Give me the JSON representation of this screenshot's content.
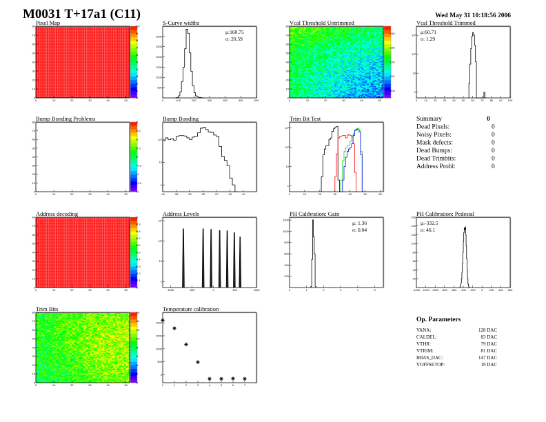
{
  "header": {
    "title": "M0031 T+17a1 (C11)",
    "date": "Wed May 31 10:18:56 2006"
  },
  "summary": {
    "title": "Summary",
    "total": "0",
    "rows": [
      {
        "label": "Dead Pixels:",
        "value": "0"
      },
      {
        "label": "Noisy Pixels:",
        "value": "0"
      },
      {
        "label": "Mask defects:",
        "value": "0"
      },
      {
        "label": "Dead Bumps:",
        "value": "0"
      },
      {
        "label": "Dead Trimbits:",
        "value": "0"
      },
      {
        "label": "Address Probl:",
        "value": "0"
      }
    ]
  },
  "op_parameters": {
    "title": "Op. Parameters",
    "rows": [
      {
        "label": "VANA:",
        "value": "128 DAC"
      },
      {
        "label": "CALDEL:",
        "value": "83 DAC"
      },
      {
        "label": "VTHR:",
        "value": "79 DAC"
      },
      {
        "label": "VTRIM:",
        "value": "81 DAC"
      },
      {
        "label": "IBIAS_DAC:",
        "value": "147 DAC"
      },
      {
        "label": "VOFFSETOP:",
        "value": "19 DAC"
      }
    ]
  },
  "colors": {
    "histogram_line": "#000000",
    "frame": "#000000"
  },
  "chart_data": [
    {
      "id": "pixel-map",
      "type": "heatmap",
      "title": "Pixel Map",
      "xlim": [
        0,
        52
      ],
      "ylim": [
        0,
        80
      ],
      "nx": 52,
      "ny": 80,
      "xticks": [
        0,
        10,
        20,
        30,
        40,
        50
      ],
      "yticks": [
        0,
        10,
        20,
        30,
        40,
        50,
        60,
        70,
        80
      ],
      "zlim": [
        0,
        10
      ],
      "zticks": [
        0,
        1,
        2,
        3,
        4,
        5,
        6,
        7,
        8,
        9,
        10
      ],
      "uniform_value": 10
    },
    {
      "id": "s-curve-widths",
      "type": "histogram",
      "title": "S-Curve widths",
      "xlim": [
        0,
        600
      ],
      "ylim": [
        0,
        3500
      ],
      "log_y": false,
      "xticks": [
        0,
        100,
        200,
        300,
        400,
        500,
        600
      ],
      "yticks": [
        500,
        1000,
        1500,
        2000,
        2500,
        3000
      ],
      "stats": {
        "mean": "μ:160.75",
        "sigma": "σ: 20.59"
      },
      "stats_position": "top-right",
      "series": [
        {
          "color": "#000000",
          "x0": 80,
          "width": 10,
          "values": [
            0,
            20,
            100,
            300,
            800,
            1500,
            2400,
            3350,
            3150,
            2200,
            1300,
            600,
            250,
            100,
            50,
            30,
            15,
            5,
            0
          ]
        }
      ]
    },
    {
      "id": "vcal-threshold-untrimmed",
      "type": "heatmap",
      "title": "Vcal Threshold Untrimmed",
      "xlim": [
        0,
        52
      ],
      "ylim": [
        0,
        80
      ],
      "nx": 52,
      "ny": 80,
      "xticks": [
        0,
        10,
        20,
        30,
        40,
        50
      ],
      "yticks": [
        0,
        10,
        20,
        30,
        40,
        50,
        60,
        70,
        80
      ],
      "zlim": [
        95,
        145
      ],
      "zticks": [
        100,
        110,
        120,
        130,
        140
      ],
      "coarse_grid_top_to_bottom": [
        [
          128,
          126,
          122,
          120
        ],
        [
          122,
          119,
          116,
          114
        ],
        [
          120,
          116,
          112,
          110
        ],
        [
          119,
          114,
          109,
          107
        ]
      ]
    },
    {
      "id": "vcal-threshold-trimmed",
      "type": "histogram",
      "title": "Vcal Threshold Trimmed",
      "xlim": [
        0,
        100
      ],
      "ylim": [
        0.5,
        3000
      ],
      "log_y": true,
      "xticks": [
        0,
        10,
        20,
        30,
        40,
        50,
        60,
        70,
        80,
        90,
        100
      ],
      "yticks": [
        1,
        10,
        100,
        1000
      ],
      "stats": {
        "mean": "μ:60.71",
        "sigma": "σ: 1.29"
      },
      "stats_position": "top-left",
      "series": [
        {
          "color": "#000000",
          "x0": 56,
          "width": 1,
          "values": [
            3,
            30,
            200,
            900,
            1400,
            1000,
            300,
            40,
            0,
            0,
            0,
            0,
            0,
            0,
            0,
            0,
            1,
            0
          ]
        }
      ]
    },
    {
      "id": "bump-bonding-problems",
      "type": "heatmap",
      "title": "Bump Bonding Problems",
      "xlim": [
        0,
        52
      ],
      "ylim": [
        0,
        80
      ],
      "nx": 52,
      "ny": 80,
      "xticks": [
        0,
        10,
        20,
        30,
        40,
        50
      ],
      "yticks": [
        0,
        10,
        20,
        30,
        40,
        50,
        60,
        70,
        80
      ],
      "zlim": [
        -2,
        2
      ],
      "zticks": [
        -2,
        -1.5,
        -1,
        -0.5,
        0,
        0.5,
        1,
        1.5,
        2
      ],
      "empty": true
    },
    {
      "id": "bump-bonding",
      "type": "histogram",
      "title": "Bump Bonding",
      "xlim": [
        -40,
        -5
      ],
      "ylim": [
        0.5,
        600
      ],
      "log_y": true,
      "xticks": [
        -40,
        -35,
        -30,
        -25,
        -20,
        -15,
        -10
      ],
      "yticks": [
        1,
        10,
        100
      ],
      "series": [
        {
          "color": "#000000",
          "x0": -40,
          "width": 1,
          "values": [
            90,
            120,
            100,
            110,
            95,
            140,
            150,
            150,
            145,
            120,
            100,
            130,
            140,
            200,
            320,
            350,
            280,
            220,
            210,
            160,
            140,
            50,
            18,
            12,
            7,
            2,
            1,
            0
          ]
        }
      ]
    },
    {
      "id": "trim-bit-test",
      "type": "histogram",
      "title": "Trim Bit Test",
      "xlim": [
        0,
        62
      ],
      "ylim": [
        0.5,
        2000
      ],
      "log_y": true,
      "xticks": [
        0,
        10,
        20,
        30,
        40,
        50,
        60
      ],
      "yticks": [
        1,
        10,
        100,
        1000
      ],
      "series": [
        {
          "color": "#000000",
          "x0": 21,
          "width": 1,
          "values": [
            3,
            40,
            80,
            120,
            120,
            250,
            300,
            650,
            900,
            1100,
            1200,
            2,
            0
          ]
        },
        {
          "color": "#ff0000",
          "x0": 30,
          "width": 1,
          "values": [
            3,
            45,
            300,
            350,
            380,
            400,
            400,
            300,
            420,
            450,
            400,
            350,
            150,
            5,
            0
          ]
        },
        {
          "color": "#00dd00",
          "x0": 34,
          "width": 1,
          "values": [
            2,
            20,
            60,
            90,
            120,
            120,
            200,
            350,
            500,
            800,
            900,
            950,
            700,
            60,
            0
          ]
        },
        {
          "color": "#0000ff",
          "x0": 35,
          "width": 1,
          "values": [
            2,
            10,
            30,
            60,
            80,
            100,
            150,
            400,
            700,
            850,
            800,
            600,
            40,
            0
          ]
        }
      ]
    },
    {
      "id": "address-decoding",
      "type": "heatmap",
      "title": "Address decoding",
      "xlim": [
        0,
        52
      ],
      "ylim": [
        0,
        80
      ],
      "nx": 52,
      "ny": 80,
      "xticks": [
        0,
        10,
        20,
        30,
        40,
        50
      ],
      "yticks": [
        0,
        10,
        20,
        30,
        40,
        50,
        60,
        70,
        80
      ],
      "zlim": [
        0,
        1
      ],
      "zticks": [
        0,
        0.1,
        0.2,
        0.3,
        0.4,
        0.5,
        0.6,
        0.7,
        0.8,
        0.9,
        1
      ],
      "uniform_value": 1
    },
    {
      "id": "address-levels",
      "type": "histogram",
      "title": "Address Levels",
      "xlim": [
        -1180,
        1000
      ],
      "ylim": [
        0.5,
        1500
      ],
      "log_y": true,
      "xticks": [
        -1000,
        -500,
        0,
        500,
        1000
      ],
      "yticks": [
        1,
        10,
        100,
        1000
      ],
      "peaks": [
        {
          "x": -700,
          "height": 400
        },
        {
          "x": -240,
          "height": 400
        },
        {
          "x": -55,
          "height": 380
        },
        {
          "x": 145,
          "height": 330
        },
        {
          "x": 320,
          "height": 320
        },
        {
          "x": 485,
          "height": 260
        },
        {
          "x": 620,
          "height": 160
        }
      ]
    },
    {
      "id": "ph-calibration-gain",
      "type": "histogram",
      "title": "PH Calibration: Gain",
      "xlim": [
        0,
        5.5
      ],
      "ylim": [
        0,
        1250
      ],
      "log_y": false,
      "xticks": [
        0,
        1,
        2,
        3,
        4,
        5
      ],
      "yticks": [
        200,
        400,
        600,
        800,
        1000,
        1200
      ],
      "stats": {
        "mean": "μ: 1.36",
        "sigma": "σ: 0.04"
      },
      "stats_position": "top-right",
      "series": [
        {
          "color": "#000000",
          "x0": 1.2,
          "width": 0.05,
          "values": [
            0,
            20,
            500,
            1200,
            900,
            600,
            20,
            0
          ]
        }
      ]
    },
    {
      "id": "ph-calibration-pedestal",
      "type": "histogram",
      "title": "PH Calibration: Pedestal",
      "xlim": [
        -1400,
        600
      ],
      "ylim": [
        0,
        160
      ],
      "log_y": false,
      "xticks": [
        -1400,
        -1200,
        -1000,
        -800,
        -600,
        -400,
        -200,
        0,
        200,
        400,
        600
      ],
      "yticks": [
        20,
        40,
        60,
        80,
        100,
        120,
        140,
        160
      ],
      "stats": {
        "mean": "μ:-332.5",
        "sigma": "σ: 46.1"
      },
      "stats_position": "top-left",
      "series": [
        {
          "color": "#000000",
          "x0": -480,
          "width": 10,
          "values": [
            0,
            2,
            5,
            10,
            20,
            35,
            55,
            80,
            105,
            125,
            135,
            132,
            138,
            120,
            95,
            65,
            40,
            20,
            8,
            3,
            0,
            0
          ]
        }
      ]
    },
    {
      "id": "trim-bits",
      "type": "heatmap",
      "title": "Trim Bits",
      "xlim": [
        0,
        52
      ],
      "ylim": [
        0,
        80
      ],
      "nx": 52,
      "ny": 80,
      "xticks": [
        0,
        10,
        20,
        30,
        40,
        50
      ],
      "yticks": [
        0,
        10,
        20,
        30,
        40,
        50,
        60,
        70,
        80
      ],
      "zlim": [
        0,
        16
      ],
      "zticks": [
        0,
        2,
        4,
        6,
        8,
        10,
        12,
        14,
        16
      ],
      "coarse_grid_top_to_bottom": [
        [
          9,
          10,
          10.5,
          10.5
        ],
        [
          9,
          10,
          11,
          11.5
        ],
        [
          8.5,
          9.5,
          11,
          11
        ],
        [
          8,
          9,
          10,
          10.5
        ]
      ]
    },
    {
      "id": "temperature-calibration",
      "type": "scatter",
      "title": "Temperature calibration",
      "xlim": [
        0,
        8
      ],
      "ylim": [
        -300,
        2400
      ],
      "log_y": false,
      "xticks": [
        0,
        1,
        2,
        3,
        4,
        5,
        6,
        7
      ],
      "yticks": [
        0,
        500,
        1000,
        1500,
        2000
      ],
      "x": [
        0,
        1,
        2,
        3,
        4,
        5,
        6,
        7
      ],
      "y": [
        2100,
        1790,
        1170,
        490,
        -150,
        -150,
        -140,
        -150
      ]
    }
  ]
}
